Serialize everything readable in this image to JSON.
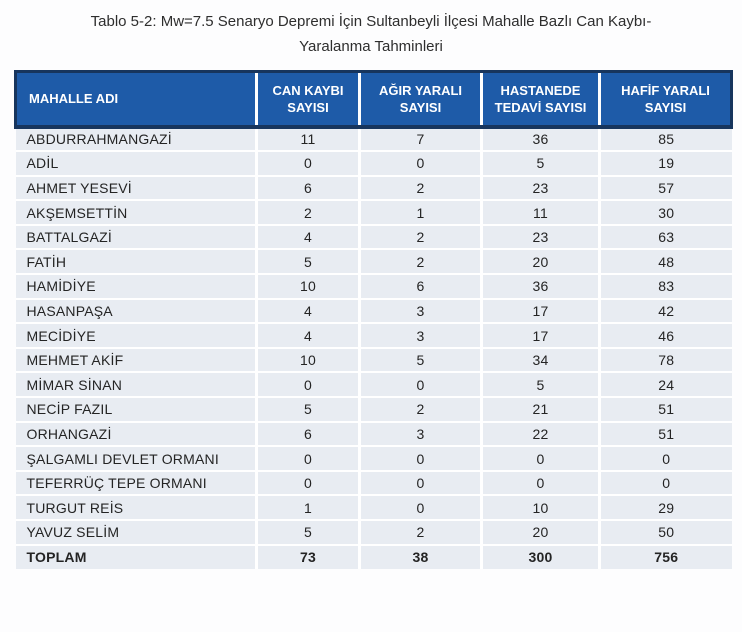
{
  "title": {
    "line1": "Tablo 5-2: Mw=7.5 Senaryo Depremi İçin Sultanbeyli İlçesi Mahalle Bazlı Can Kaybı-",
    "line2": "Yaralanma Tahminleri"
  },
  "table": {
    "columns": [
      "MAHALLE ADI",
      "CAN KAYBI SAYISI",
      "AĞIR YARALI SAYISI",
      "HASTANEDE TEDAVİ SAYISI",
      "HAFİF YARALI SAYISI"
    ],
    "rows": [
      {
        "name": "ABDURRAHMANGAZİ",
        "values": [
          11,
          7,
          36,
          85
        ]
      },
      {
        "name": "ADİL",
        "values": [
          0,
          0,
          5,
          19
        ]
      },
      {
        "name": "AHMET YESEVİ",
        "values": [
          6,
          2,
          23,
          57
        ]
      },
      {
        "name": "AKŞEMSETTİN",
        "values": [
          2,
          1,
          11,
          30
        ]
      },
      {
        "name": "BATTALGAZİ",
        "values": [
          4,
          2,
          23,
          63
        ]
      },
      {
        "name": "FATİH",
        "values": [
          5,
          2,
          20,
          48
        ]
      },
      {
        "name": "HAMİDİYE",
        "values": [
          10,
          6,
          36,
          83
        ]
      },
      {
        "name": "HASANPAŞA",
        "values": [
          4,
          3,
          17,
          42
        ]
      },
      {
        "name": "MECİDİYE",
        "values": [
          4,
          3,
          17,
          46
        ]
      },
      {
        "name": "MEHMET AKİF",
        "values": [
          10,
          5,
          34,
          78
        ]
      },
      {
        "name": "MİMAR SİNAN",
        "values": [
          0,
          0,
          5,
          24
        ]
      },
      {
        "name": "NECİP FAZIL",
        "values": [
          5,
          2,
          21,
          51
        ]
      },
      {
        "name": "ORHANGAZİ",
        "values": [
          6,
          3,
          22,
          51
        ]
      },
      {
        "name": "ŞALGAMLI DEVLET ORMANI",
        "values": [
          0,
          0,
          0,
          0
        ]
      },
      {
        "name": "TEFERRÜÇ TEPE ORMANI",
        "values": [
          0,
          0,
          0,
          0
        ]
      },
      {
        "name": "TURGUT REİS",
        "values": [
          1,
          0,
          10,
          29
        ]
      },
      {
        "name": "YAVUZ SELİM",
        "values": [
          5,
          2,
          20,
          50
        ]
      }
    ],
    "total": {
      "name": "TOPLAM",
      "values": [
        73,
        38,
        300,
        756
      ]
    }
  },
  "colors": {
    "header_bg": "#1e5ba8",
    "header_border": "#17355d",
    "header_text": "#ffffff",
    "row_bg": "#e8ecf2",
    "grid": "#ffffff",
    "text": "#262626"
  }
}
